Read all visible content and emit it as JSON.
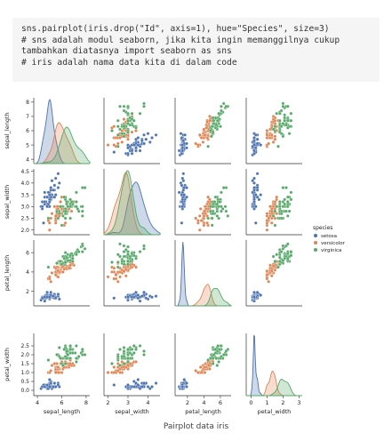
{
  "code": {
    "lines": [
      "sns.pairplot(iris.drop(\"Id\", axis=1), hue=\"Species\", size=3)",
      "# sns adalah modul seaborn, jika kita ingin memanggilnya cukup",
      "tambahkan diatasnya import seaborn as sns",
      "# iris adalah nama data kita di dalam code"
    ]
  },
  "caption": "Pairplot data iris",
  "chart_data": {
    "type": "scatter",
    "variables": [
      "sepal_length",
      "sepal_width",
      "petal_length",
      "petal_width"
    ],
    "axis_ticks": {
      "sepal_length": [
        4,
        6,
        8
      ],
      "sepal_width": [
        2,
        3,
        4
      ],
      "petal_length": [
        2,
        4,
        6
      ],
      "petal_width": [
        0,
        1,
        2,
        3
      ]
    },
    "y_ticks": {
      "sepal_length": [
        4,
        5,
        6,
        7,
        8
      ],
      "sepal_width": [
        2.0,
        2.5,
        3.0,
        3.5,
        4.0,
        4.5
      ],
      "petal_length": [
        2,
        4,
        6
      ],
      "petal_width": [
        0.0,
        0.5,
        1.0,
        1.5,
        2.0,
        2.5
      ]
    },
    "legend": {
      "title": "species",
      "entries": [
        "setosa",
        "versicolor",
        "virginica"
      ],
      "placement": "right"
    },
    "colors": {
      "setosa": "#4c72b0",
      "versicolor": "#dd8452",
      "virginica": "#55a868"
    },
    "series": [
      {
        "name": "setosa",
        "sepal_length": [
          5.1,
          4.9,
          4.7,
          4.6,
          5.0,
          5.4,
          4.6,
          5.0,
          4.4,
          4.9,
          5.4,
          4.8,
          4.8,
          4.3,
          5.8,
          5.7,
          5.4,
          5.1,
          5.7,
          5.1,
          5.4,
          5.1,
          4.6,
          5.1,
          4.8,
          5.0,
          5.0,
          5.2,
          5.2,
          4.7,
          4.8,
          5.4,
          5.2,
          5.5,
          4.9,
          5.0,
          5.5,
          4.9,
          4.4,
          5.1,
          5.0,
          4.5,
          4.4,
          5.0,
          5.1,
          4.8,
          5.1,
          4.6,
          5.3,
          5.0
        ],
        "sepal_width": [
          3.5,
          3.0,
          3.2,
          3.1,
          3.6,
          3.9,
          3.4,
          3.4,
          2.9,
          3.1,
          3.7,
          3.4,
          3.0,
          3.0,
          4.0,
          4.4,
          3.9,
          3.5,
          3.8,
          3.8,
          3.4,
          3.7,
          3.6,
          3.3,
          3.4,
          3.0,
          3.4,
          3.5,
          3.4,
          3.2,
          3.1,
          3.4,
          4.1,
          4.2,
          3.1,
          3.2,
          3.5,
          3.6,
          3.0,
          3.4,
          3.5,
          2.3,
          3.2,
          3.5,
          3.8,
          3.0,
          3.8,
          3.2,
          3.7,
          3.3
        ],
        "petal_length": [
          1.4,
          1.4,
          1.3,
          1.5,
          1.4,
          1.7,
          1.4,
          1.5,
          1.4,
          1.5,
          1.5,
          1.6,
          1.4,
          1.1,
          1.2,
          1.5,
          1.3,
          1.4,
          1.7,
          1.5,
          1.7,
          1.5,
          1.0,
          1.7,
          1.9,
          1.6,
          1.6,
          1.5,
          1.4,
          1.6,
          1.6,
          1.5,
          1.5,
          1.4,
          1.5,
          1.2,
          1.3,
          1.4,
          1.3,
          1.5,
          1.3,
          1.3,
          1.3,
          1.6,
          1.9,
          1.4,
          1.6,
          1.4,
          1.5,
          1.4
        ],
        "petal_width": [
          0.2,
          0.2,
          0.2,
          0.2,
          0.2,
          0.4,
          0.3,
          0.2,
          0.2,
          0.1,
          0.2,
          0.2,
          0.1,
          0.1,
          0.2,
          0.4,
          0.4,
          0.3,
          0.3,
          0.3,
          0.2,
          0.4,
          0.2,
          0.5,
          0.2,
          0.2,
          0.4,
          0.2,
          0.2,
          0.2,
          0.2,
          0.4,
          0.1,
          0.2,
          0.2,
          0.2,
          0.2,
          0.1,
          0.2,
          0.2,
          0.3,
          0.3,
          0.2,
          0.6,
          0.4,
          0.3,
          0.2,
          0.2,
          0.2,
          0.2
        ]
      },
      {
        "name": "versicolor",
        "sepal_length": [
          7.0,
          6.4,
          6.9,
          5.5,
          6.5,
          5.7,
          6.3,
          4.9,
          6.6,
          5.2,
          5.0,
          5.9,
          6.0,
          6.1,
          5.6,
          6.7,
          5.6,
          5.8,
          6.2,
          5.6,
          5.9,
          6.1,
          6.3,
          6.1,
          6.4,
          6.6,
          6.8,
          6.7,
          6.0,
          5.7,
          5.5,
          5.5,
          5.8,
          6.0,
          5.4,
          6.0,
          6.7,
          6.3,
          5.6,
          5.5,
          5.5,
          6.1,
          5.8,
          5.0,
          5.6,
          5.7,
          5.7,
          6.2,
          5.1,
          5.7
        ],
        "sepal_width": [
          3.2,
          3.2,
          3.1,
          2.3,
          2.8,
          2.8,
          3.3,
          2.4,
          2.9,
          2.7,
          2.0,
          3.0,
          2.2,
          2.9,
          2.9,
          3.1,
          3.0,
          2.7,
          2.2,
          2.5,
          3.2,
          2.8,
          2.5,
          2.8,
          2.9,
          3.0,
          2.8,
          3.0,
          2.9,
          2.6,
          2.4,
          2.4,
          2.7,
          2.7,
          3.0,
          3.4,
          3.1,
          2.3,
          3.0,
          2.5,
          2.6,
          3.0,
          2.6,
          2.3,
          2.7,
          3.0,
          2.9,
          2.9,
          2.5,
          2.8
        ],
        "petal_length": [
          4.7,
          4.5,
          4.9,
          4.0,
          4.6,
          4.5,
          4.7,
          3.3,
          4.6,
          3.9,
          3.5,
          4.2,
          4.0,
          4.7,
          3.6,
          4.4,
          4.5,
          4.1,
          4.5,
          3.9,
          4.8,
          4.0,
          4.9,
          4.7,
          4.3,
          4.4,
          4.8,
          5.0,
          4.5,
          3.5,
          3.8,
          3.7,
          3.9,
          5.1,
          4.5,
          4.5,
          4.7,
          4.4,
          4.1,
          4.0,
          4.4,
          4.6,
          4.0,
          3.3,
          4.2,
          4.2,
          4.2,
          4.3,
          3.0,
          4.1
        ],
        "petal_width": [
          1.4,
          1.5,
          1.5,
          1.3,
          1.5,
          1.3,
          1.6,
          1.0,
          1.3,
          1.4,
          1.0,
          1.5,
          1.0,
          1.4,
          1.3,
          1.4,
          1.5,
          1.0,
          1.5,
          1.1,
          1.8,
          1.3,
          1.5,
          1.2,
          1.3,
          1.4,
          1.4,
          1.7,
          1.5,
          1.0,
          1.1,
          1.0,
          1.2,
          1.6,
          1.5,
          1.6,
          1.5,
          1.3,
          1.3,
          1.3,
          1.2,
          1.4,
          1.2,
          1.0,
          1.3,
          1.2,
          1.3,
          1.3,
          1.1,
          1.3
        ]
      },
      {
        "name": "virginica",
        "sepal_length": [
          6.3,
          5.8,
          7.1,
          6.3,
          6.5,
          7.6,
          4.9,
          7.3,
          6.7,
          7.2,
          6.5,
          6.4,
          6.8,
          5.7,
          5.8,
          6.4,
          6.5,
          7.7,
          7.7,
          6.0,
          6.9,
          5.6,
          7.7,
          6.3,
          6.7,
          7.2,
          6.2,
          6.1,
          6.4,
          7.2,
          7.4,
          7.9,
          6.4,
          6.3,
          6.1,
          7.7,
          6.3,
          6.4,
          6.0,
          6.9,
          6.7,
          6.9,
          5.8,
          6.8,
          6.7,
          6.7,
          6.3,
          6.5,
          6.2,
          5.9
        ],
        "sepal_width": [
          3.3,
          2.7,
          3.0,
          2.9,
          3.0,
          3.0,
          2.5,
          2.9,
          2.5,
          3.6,
          3.2,
          2.7,
          3.0,
          2.5,
          2.8,
          3.2,
          3.0,
          3.8,
          2.6,
          2.2,
          3.2,
          2.8,
          2.8,
          2.7,
          3.3,
          3.2,
          2.8,
          3.0,
          2.8,
          3.0,
          2.8,
          3.8,
          2.8,
          2.8,
          2.6,
          3.0,
          3.4,
          3.1,
          3.0,
          3.1,
          3.1,
          3.1,
          2.7,
          3.2,
          3.3,
          3.0,
          2.5,
          3.0,
          3.4,
          3.0
        ],
        "petal_length": [
          6.0,
          5.1,
          5.9,
          5.6,
          5.8,
          6.6,
          4.5,
          6.3,
          5.8,
          6.1,
          5.1,
          5.3,
          5.5,
          5.0,
          5.1,
          5.3,
          5.5,
          6.7,
          6.9,
          5.0,
          5.7,
          4.9,
          6.7,
          4.9,
          5.7,
          6.0,
          4.8,
          4.9,
          5.6,
          5.8,
          6.1,
          6.4,
          5.6,
          5.1,
          5.6,
          6.1,
          5.6,
          5.5,
          4.8,
          5.4,
          5.6,
          5.1,
          5.1,
          5.9,
          5.7,
          5.2,
          5.0,
          5.2,
          5.4,
          5.1
        ],
        "petal_width": [
          2.5,
          1.9,
          2.1,
          1.8,
          2.2,
          2.1,
          1.7,
          1.8,
          1.8,
          2.5,
          2.0,
          1.9,
          2.1,
          2.0,
          2.4,
          2.3,
          1.8,
          2.2,
          2.3,
          1.5,
          2.3,
          2.0,
          2.0,
          1.8,
          2.1,
          1.8,
          1.8,
          1.8,
          2.1,
          1.6,
          1.9,
          2.0,
          2.2,
          1.5,
          1.4,
          2.3,
          2.4,
          1.8,
          1.8,
          2.1,
          2.4,
          2.3,
          1.9,
          2.3,
          2.5,
          2.3,
          1.9,
          2.0,
          2.3,
          1.8
        ]
      }
    ]
  }
}
